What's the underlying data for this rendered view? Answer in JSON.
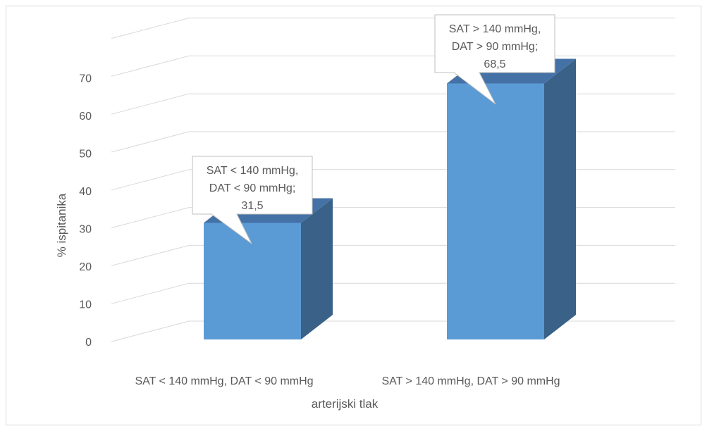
{
  "chart_data": {
    "type": "bar",
    "style": "3d-clustered-column",
    "title": "",
    "xlabel": "arterijski tlak",
    "ylabel": "% ispitanika",
    "ylim": [
      0,
      80
    ],
    "yticks": [
      0,
      10,
      20,
      30,
      40,
      50,
      60,
      70
    ],
    "categories": [
      "SAT < 140 mmHg, DAT < 90 mmHg",
      "SAT > 140 mmHg, DAT > 90 mmHg"
    ],
    "values": [
      31.5,
      68.5
    ],
    "grid": true,
    "legend": "none",
    "data_labels": [
      [
        "SAT < 140 mmHg,",
        "DAT < 90 mmHg;",
        "31,5"
      ],
      [
        "SAT > 140 mmHg,",
        "DAT > 90 mmHg;",
        "68,5"
      ]
    ],
    "colors": {
      "bar_front": "#5b9bd5",
      "bar_side": "#3a6187",
      "bar_top": "#4472a6",
      "grid": "#d9d9d9",
      "text": "#595959",
      "callout_border": "#bfbfbf",
      "callout_fill": "#ffffff"
    }
  }
}
